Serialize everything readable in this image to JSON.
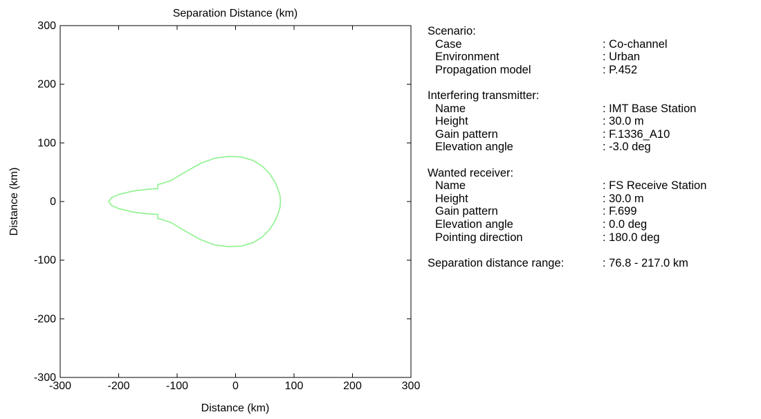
{
  "chart_data": {
    "type": "line",
    "title": "Separation Distance (km)",
    "xlabel": "Distance (km)",
    "ylabel": "Distance (km)",
    "xlim": [
      -300,
      300
    ],
    "ylim": [
      -300,
      300
    ],
    "xticks": [
      "-300",
      "-200",
      "-100",
      "0",
      "100",
      "200",
      "300"
    ],
    "yticks": [
      "-300",
      "-200",
      "-100",
      "0",
      "100",
      "200",
      "300"
    ],
    "grid": false,
    "series": [
      {
        "color": "#8ef28e",
        "points": [
          [
            76.8,
            0
          ],
          [
            76,
            10
          ],
          [
            73,
            20
          ],
          [
            67,
            34
          ],
          [
            58,
            48
          ],
          [
            46,
            60
          ],
          [
            30,
            70
          ],
          [
            10,
            76
          ],
          [
            -12,
            77
          ],
          [
            -35,
            74
          ],
          [
            -60,
            65
          ],
          [
            -85,
            51
          ],
          [
            -110,
            36
          ],
          [
            -125,
            31
          ],
          [
            -133,
            29
          ],
          [
            -133,
            22
          ],
          [
            -150,
            21
          ],
          [
            -175,
            18
          ],
          [
            -200,
            12
          ],
          [
            -212,
            7
          ],
          [
            -217,
            0
          ],
          [
            -212,
            -7
          ],
          [
            -200,
            -12
          ],
          [
            -175,
            -18
          ],
          [
            -150,
            -21
          ],
          [
            -133,
            -22
          ],
          [
            -133,
            -29
          ],
          [
            -125,
            -31
          ],
          [
            -110,
            -36
          ],
          [
            -85,
            -51
          ],
          [
            -60,
            -65
          ],
          [
            -35,
            -74
          ],
          [
            -12,
            -77
          ],
          [
            10,
            -76
          ],
          [
            30,
            -70
          ],
          [
            46,
            -60
          ],
          [
            58,
            -48
          ],
          [
            67,
            -34
          ],
          [
            73,
            -20
          ],
          [
            76,
            -10
          ],
          [
            76.8,
            0
          ]
        ]
      }
    ]
  },
  "info": {
    "scenario": {
      "heading": "Scenario:",
      "rows": [
        {
          "label": "Case",
          "value": ": Co-channel"
        },
        {
          "label": "Environment",
          "value": ": Urban"
        },
        {
          "label": "Propagation model",
          "value": ": P.452"
        }
      ]
    },
    "interferer": {
      "heading": "Interfering transmitter:",
      "rows": [
        {
          "label": "Name",
          "value": ": IMT Base Station"
        },
        {
          "label": "Height",
          "value": ": 30.0 m"
        },
        {
          "label": "Gain pattern",
          "value": ": F.1336_A10"
        },
        {
          "label": "Elevation angle",
          "value": ": -3.0 deg"
        }
      ]
    },
    "receiver": {
      "heading": "Wanted receiver:",
      "rows": [
        {
          "label": "Name",
          "value": ": FS Receive Station"
        },
        {
          "label": "Height",
          "value": ": 30.0 m"
        },
        {
          "label": "Gain pattern",
          "value": ": F.699"
        },
        {
          "label": "Elevation angle",
          "value": ": 0.0 deg"
        },
        {
          "label": "Pointing direction",
          "value": ": 180.0 deg"
        }
      ]
    },
    "range": {
      "label": "Separation distance range:",
      "value": ": 76.8 -  217.0 km"
    }
  }
}
